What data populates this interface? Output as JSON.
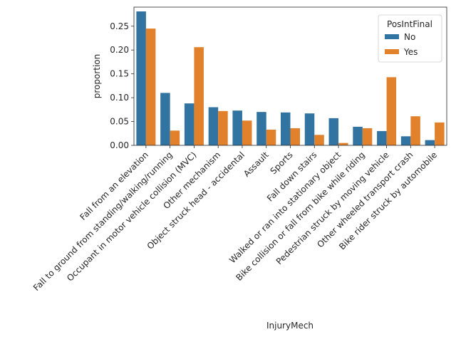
{
  "chart_data": {
    "type": "bar",
    "xlabel": "InjuryMech",
    "ylabel": "proportion",
    "ylim": [
      0,
      0.29
    ],
    "yticks": [
      0.0,
      0.05,
      0.1,
      0.15,
      0.2,
      0.25
    ],
    "ytick_labels": [
      "0.00",
      "0.05",
      "0.10",
      "0.15",
      "0.20",
      "0.25"
    ],
    "grid": false,
    "legend": {
      "title": "PosIntFinal",
      "placement": "top-right"
    },
    "categories": [
      "Fall from an elevation",
      "Fall to ground from standing/walking/running",
      "Occupant in motor vehicle collision (MVC)",
      "Other mechanism",
      "Object struck head - accidental",
      "Assault",
      "Sports",
      "Fall down stairs",
      "Walked or ran into stationary object",
      "Bike collision or fall from bike while riding",
      "Pedestrian struck by moving vehicle",
      "Other wheeled transport crash",
      "Bike rider struck by automobile"
    ],
    "series": [
      {
        "name": "No",
        "color": "#3274a1",
        "values": [
          0.281,
          0.11,
          0.088,
          0.08,
          0.073,
          0.07,
          0.069,
          0.067,
          0.057,
          0.039,
          0.03,
          0.019,
          0.011
        ]
      },
      {
        "name": "Yes",
        "color": "#e1812c",
        "values": [
          0.245,
          0.031,
          0.206,
          0.072,
          0.052,
          0.033,
          0.036,
          0.022,
          0.005,
          0.036,
          0.143,
          0.061,
          0.048
        ]
      }
    ]
  }
}
